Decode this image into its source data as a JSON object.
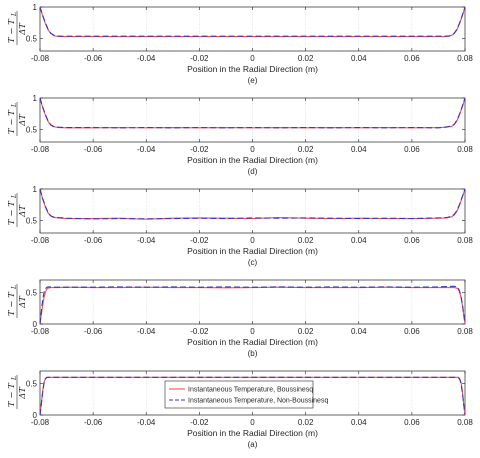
{
  "chart_data": [
    {
      "type": "line",
      "panel_label": "(e)",
      "xlabel": "Position in the Radial Direction (m)",
      "ylabel": [
        "T − T",
        "L",
        "ΔT"
      ],
      "xlim": [
        -0.08,
        0.08
      ],
      "ylim": [
        0.3,
        1.0
      ],
      "xticks": [
        "-0.08",
        "-0.06",
        "-0.04",
        "-0.02",
        "0",
        "0.02",
        "0.04",
        "0.06",
        "0.08"
      ],
      "yticks": [
        "0.5",
        "1"
      ],
      "grid": "vertical",
      "legend": false,
      "series": [
        {
          "color": "#ff4d4d",
          "dashed": false,
          "x": [
            -0.08,
            -0.079,
            -0.078,
            -0.077,
            -0.076,
            -0.075,
            -0.074,
            -0.072,
            -0.07,
            -0.06,
            -0.04,
            -0.02,
            0,
            0.02,
            0.04,
            0.06,
            0.07,
            0.072,
            0.074,
            0.075,
            0.076,
            0.077,
            0.078,
            0.079,
            0.08
          ],
          "y": [
            1.0,
            0.86,
            0.74,
            0.64,
            0.58,
            0.55,
            0.535,
            0.53,
            0.53,
            0.53,
            0.53,
            0.53,
            0.53,
            0.53,
            0.53,
            0.53,
            0.53,
            0.53,
            0.535,
            0.55,
            0.58,
            0.64,
            0.74,
            0.86,
            1.0
          ]
        },
        {
          "color": "#3333cc",
          "dashed": true,
          "x": [
            -0.08,
            -0.079,
            -0.078,
            -0.077,
            -0.076,
            -0.075,
            -0.074,
            -0.072,
            -0.07,
            -0.06,
            -0.04,
            -0.02,
            0,
            0.02,
            0.04,
            0.06,
            0.07,
            0.072,
            0.074,
            0.075,
            0.076,
            0.077,
            0.078,
            0.079,
            0.08
          ],
          "y": [
            1.0,
            0.87,
            0.75,
            0.65,
            0.585,
            0.555,
            0.54,
            0.535,
            0.535,
            0.535,
            0.535,
            0.535,
            0.535,
            0.535,
            0.535,
            0.535,
            0.535,
            0.535,
            0.54,
            0.555,
            0.585,
            0.65,
            0.75,
            0.87,
            1.0
          ]
        }
      ]
    },
    {
      "type": "line",
      "panel_label": "(d)",
      "xlabel": "Position in the Radial Direction (m)",
      "ylabel": [
        "T − T",
        "L",
        "ΔT"
      ],
      "xlim": [
        -0.08,
        0.08
      ],
      "ylim": [
        0.3,
        1.0
      ],
      "xticks": [
        "-0.08",
        "-0.06",
        "-0.04",
        "-0.02",
        "0",
        "0.02",
        "0.04",
        "0.06",
        "0.08"
      ],
      "yticks": [
        "0.5",
        "1"
      ],
      "grid": "vertical",
      "legend": false,
      "series": [
        {
          "color": "#ff4d4d",
          "dashed": false,
          "x": [
            -0.08,
            -0.079,
            -0.078,
            -0.077,
            -0.076,
            -0.075,
            -0.073,
            -0.07,
            -0.06,
            -0.05,
            -0.04,
            -0.03,
            -0.02,
            -0.01,
            0,
            0.01,
            0.02,
            0.03,
            0.04,
            0.05,
            0.06,
            0.07,
            0.073,
            0.075,
            0.076,
            0.077,
            0.078,
            0.079,
            0.08
          ],
          "y": [
            1.0,
            0.85,
            0.73,
            0.63,
            0.57,
            0.545,
            0.53,
            0.525,
            0.525,
            0.53,
            0.525,
            0.53,
            0.525,
            0.53,
            0.525,
            0.53,
            0.525,
            0.53,
            0.525,
            0.53,
            0.525,
            0.53,
            0.535,
            0.55,
            0.58,
            0.64,
            0.74,
            0.86,
            1.0
          ]
        },
        {
          "color": "#3333cc",
          "dashed": true,
          "x": [
            -0.08,
            -0.079,
            -0.078,
            -0.077,
            -0.076,
            -0.075,
            -0.073,
            -0.07,
            -0.06,
            -0.05,
            -0.04,
            -0.03,
            -0.02,
            -0.01,
            0,
            0.01,
            0.02,
            0.03,
            0.04,
            0.05,
            0.06,
            0.07,
            0.073,
            0.075,
            0.076,
            0.077,
            0.078,
            0.079,
            0.08
          ],
          "y": [
            1.0,
            0.86,
            0.74,
            0.64,
            0.575,
            0.55,
            0.535,
            0.53,
            0.53,
            0.525,
            0.53,
            0.525,
            0.53,
            0.525,
            0.53,
            0.525,
            0.53,
            0.525,
            0.53,
            0.525,
            0.53,
            0.525,
            0.54,
            0.555,
            0.585,
            0.65,
            0.75,
            0.87,
            1.0
          ]
        }
      ]
    },
    {
      "type": "line",
      "panel_label": "(c)",
      "xlabel": "Position in the Radial Direction (m)",
      "ylabel": [
        "T − T",
        "L",
        "ΔT"
      ],
      "xlim": [
        -0.08,
        0.08
      ],
      "ylim": [
        0.3,
        1.0
      ],
      "xticks": [
        "-0.08",
        "-0.06",
        "-0.04",
        "-0.02",
        "0",
        "0.02",
        "0.04",
        "0.06",
        "0.08"
      ],
      "yticks": [
        "0.5",
        "1"
      ],
      "grid": "vertical",
      "legend": false,
      "series": [
        {
          "color": "#ff4d4d",
          "dashed": false,
          "x": [
            -0.08,
            -0.079,
            -0.078,
            -0.077,
            -0.076,
            -0.075,
            -0.073,
            -0.07,
            -0.06,
            -0.05,
            -0.04,
            -0.03,
            -0.02,
            -0.01,
            0,
            0.01,
            0.02,
            0.03,
            0.04,
            0.05,
            0.06,
            0.07,
            0.073,
            0.075,
            0.076,
            0.077,
            0.078,
            0.079,
            0.08
          ],
          "y": [
            1.0,
            0.84,
            0.72,
            0.62,
            0.57,
            0.55,
            0.54,
            0.53,
            0.53,
            0.535,
            0.52,
            0.535,
            0.54,
            0.535,
            0.53,
            0.545,
            0.535,
            0.53,
            0.535,
            0.53,
            0.53,
            0.535,
            0.54,
            0.56,
            0.59,
            0.65,
            0.75,
            0.87,
            1.0
          ]
        },
        {
          "color": "#3333cc",
          "dashed": true,
          "x": [
            -0.08,
            -0.079,
            -0.078,
            -0.077,
            -0.076,
            -0.075,
            -0.073,
            -0.07,
            -0.06,
            -0.05,
            -0.04,
            -0.03,
            -0.02,
            -0.01,
            0,
            0.01,
            0.02,
            0.03,
            0.04,
            0.05,
            0.06,
            0.07,
            0.073,
            0.075,
            0.076,
            0.077,
            0.078,
            0.079,
            0.08
          ],
          "y": [
            1.0,
            0.85,
            0.73,
            0.63,
            0.575,
            0.555,
            0.545,
            0.535,
            0.525,
            0.53,
            0.525,
            0.53,
            0.535,
            0.53,
            0.54,
            0.535,
            0.54,
            0.535,
            0.53,
            0.535,
            0.53,
            0.54,
            0.545,
            0.565,
            0.6,
            0.66,
            0.76,
            0.88,
            1.0
          ]
        }
      ]
    },
    {
      "type": "line",
      "panel_label": "(b)",
      "xlabel": "Position in the Radial Direction (m)",
      "ylabel": [
        "T − T",
        "L",
        "ΔT"
      ],
      "xlim": [
        -0.08,
        0.08
      ],
      "ylim": [
        0,
        0.7
      ],
      "xticks": [
        "-0.08",
        "-0.06",
        "-0.04",
        "-0.02",
        "0",
        "0.02",
        "0.04",
        "0.06",
        "0.08"
      ],
      "yticks": [
        "0",
        "0.5"
      ],
      "grid": "vertical",
      "legend": false,
      "series": [
        {
          "color": "#ff4d4d",
          "dashed": false,
          "x": [
            -0.08,
            -0.0795,
            -0.079,
            -0.0785,
            -0.078,
            -0.0775,
            -0.077,
            -0.076,
            -0.075,
            -0.073,
            -0.07,
            -0.06,
            -0.05,
            -0.04,
            -0.03,
            -0.02,
            -0.01,
            0,
            0.01,
            0.02,
            0.03,
            0.04,
            0.05,
            0.06,
            0.07,
            0.073,
            0.075,
            0.076,
            0.077,
            0.0775,
            0.078,
            0.0785,
            0.079,
            0.0795,
            0.08
          ],
          "y": [
            0.0,
            0.15,
            0.3,
            0.42,
            0.5,
            0.55,
            0.57,
            0.58,
            0.58,
            0.58,
            0.585,
            0.58,
            0.58,
            0.585,
            0.58,
            0.58,
            0.575,
            0.58,
            0.585,
            0.58,
            0.58,
            0.58,
            0.585,
            0.58,
            0.58,
            0.58,
            0.58,
            0.58,
            0.57,
            0.55,
            0.5,
            0.42,
            0.3,
            0.15,
            0.0
          ]
        },
        {
          "color": "#3333cc",
          "dashed": true,
          "x": [
            -0.08,
            -0.0795,
            -0.079,
            -0.0785,
            -0.078,
            -0.0775,
            -0.077,
            -0.076,
            -0.075,
            -0.073,
            -0.07,
            -0.06,
            -0.05,
            -0.04,
            -0.03,
            -0.02,
            -0.01,
            0,
            0.01,
            0.02,
            0.03,
            0.04,
            0.05,
            0.06,
            0.07,
            0.073,
            0.075,
            0.076,
            0.077,
            0.0775,
            0.078,
            0.0785,
            0.079,
            0.0795,
            0.08
          ],
          "y": [
            0.0,
            0.2,
            0.38,
            0.5,
            0.56,
            0.58,
            0.59,
            0.59,
            0.585,
            0.585,
            0.585,
            0.585,
            0.59,
            0.585,
            0.59,
            0.585,
            0.59,
            0.585,
            0.59,
            0.585,
            0.59,
            0.585,
            0.59,
            0.585,
            0.59,
            0.595,
            0.6,
            0.6,
            0.59,
            0.57,
            0.52,
            0.44,
            0.32,
            0.17,
            0.0
          ]
        }
      ]
    },
    {
      "type": "line",
      "panel_label": "(a)",
      "xlabel": "Position in the Radial Direction (m)",
      "ylabel": [
        "T − T",
        "L",
        "ΔT"
      ],
      "xlim": [
        -0.08,
        0.08
      ],
      "ylim": [
        0,
        0.7
      ],
      "xticks": [
        "-0.08",
        "-0.06",
        "-0.04",
        "-0.02",
        "0",
        "0.02",
        "0.04",
        "0.06",
        "0.08"
      ],
      "yticks": [
        "0",
        "0.5"
      ],
      "grid": "vertical",
      "legend": true,
      "series": [
        {
          "name": "Instantaneous Temperature, Boussinesq",
          "color": "#ff4d4d",
          "dashed": false,
          "x": [
            -0.08,
            -0.0795,
            -0.079,
            -0.0785,
            -0.078,
            -0.0775,
            -0.077,
            -0.076,
            -0.07,
            -0.05,
            -0.03,
            -0.01,
            0,
            0.01,
            0.03,
            0.05,
            0.07,
            0.076,
            0.077,
            0.0775,
            0.078,
            0.0785,
            0.079,
            0.0795,
            0.08
          ],
          "y": [
            0.0,
            0.18,
            0.38,
            0.52,
            0.58,
            0.6,
            0.6,
            0.6,
            0.6,
            0.6,
            0.6,
            0.6,
            0.6,
            0.6,
            0.6,
            0.6,
            0.6,
            0.6,
            0.6,
            0.6,
            0.58,
            0.52,
            0.38,
            0.18,
            0.0
          ]
        },
        {
          "name": "Instantaneous Temperature, Non-Boussinesq",
          "color": "#3333cc",
          "dashed": true,
          "x": [
            -0.08,
            -0.0795,
            -0.079,
            -0.0785,
            -0.078,
            -0.0775,
            -0.077,
            -0.076,
            -0.07,
            -0.05,
            -0.03,
            -0.01,
            0,
            0.01,
            0.03,
            0.05,
            0.07,
            0.076,
            0.077,
            0.0775,
            0.078,
            0.0785,
            0.079,
            0.0795,
            0.08
          ],
          "y": [
            0.0,
            0.17,
            0.36,
            0.5,
            0.57,
            0.595,
            0.6,
            0.6,
            0.6,
            0.6,
            0.6,
            0.6,
            0.6,
            0.6,
            0.6,
            0.6,
            0.6,
            0.6,
            0.6,
            0.595,
            0.57,
            0.5,
            0.36,
            0.17,
            0.0
          ]
        }
      ]
    }
  ]
}
